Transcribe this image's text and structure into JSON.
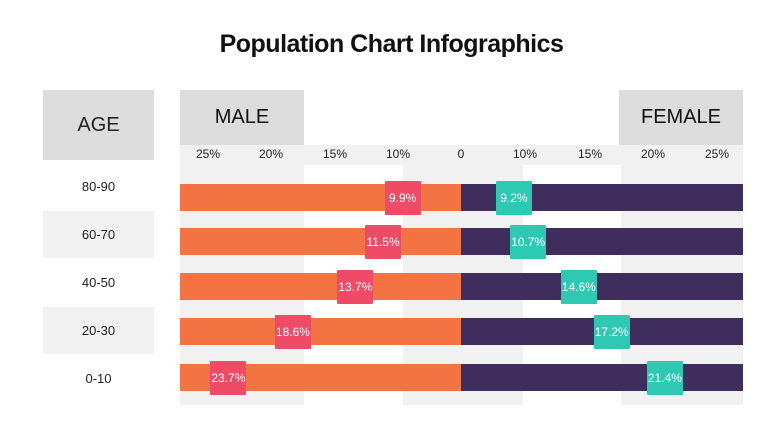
{
  "title": "Population Chart Infographics",
  "age_header": "AGE",
  "male_header": "MALE",
  "female_header": "FEMALE",
  "colors": {
    "male_bar": "#f47342",
    "female_bar": "#3f2d5e",
    "male_label": "#ef4b67",
    "female_label": "#2ec9b2"
  },
  "chart_data": {
    "type": "bar",
    "orientation": "horizontal-butterfly",
    "categories": [
      "80-90",
      "60-70",
      "40-50",
      "20-30",
      "0-10"
    ],
    "series": [
      {
        "name": "MALE",
        "values": [
          9.9,
          11.5,
          13.7,
          18.6,
          23.7
        ],
        "labels": [
          "9.9%",
          "11.5%",
          "13.7%",
          "18.6%",
          "23.7%"
        ]
      },
      {
        "name": "FEMALE",
        "values": [
          9.2,
          10.7,
          14.6,
          17.2,
          21.4
        ],
        "labels": [
          "9.2%",
          "10.7%",
          "14.6%",
          "17.2%",
          "21.4%"
        ]
      }
    ],
    "male_ticks": [
      "25%",
      "20%",
      "15%",
      "10%",
      "0"
    ],
    "female_ticks": [
      "10%",
      "15%",
      "20%",
      "25%"
    ],
    "xlim": [
      0,
      25
    ]
  }
}
